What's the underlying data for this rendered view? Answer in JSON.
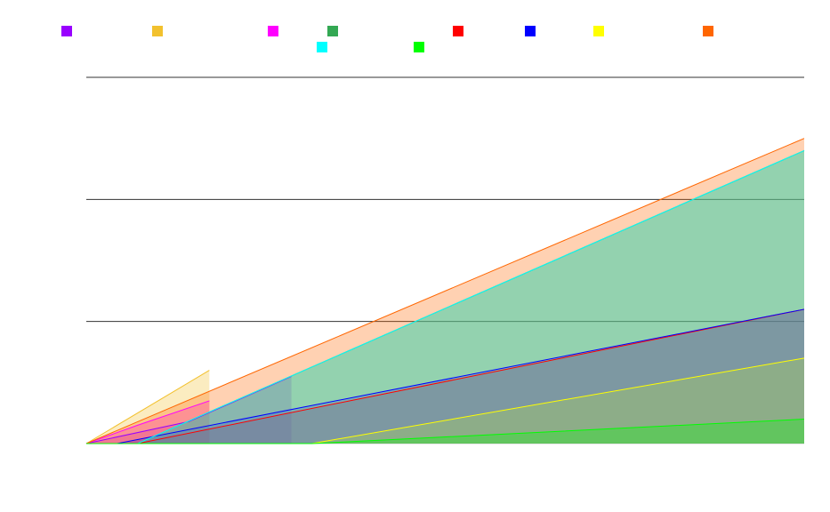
{
  "chart_data": {
    "type": "area",
    "title": "",
    "xlabel": "",
    "ylabel": "",
    "x": [
      0,
      1,
      2,
      3,
      4,
      5,
      6,
      7
    ],
    "ylim": [
      0,
      3
    ],
    "grid_y": [
      0,
      1,
      2,
      3
    ],
    "grid": true,
    "legend_position": "top",
    "series": [
      {
        "color": "#9900ff",
        "x": [
          0,
          1,
          2
        ],
        "values": [
          0,
          0.18,
          0.55
        ]
      },
      {
        "color": "#f2c12e",
        "x": [
          0,
          1,
          1.2
        ],
        "values": [
          0,
          0.5,
          0.6
        ]
      },
      {
        "color": "#ff00ff",
        "x": [
          0,
          0.5,
          1.2
        ],
        "values": [
          0,
          0.15,
          0.35
        ]
      },
      {
        "color": "#33a853",
        "x": [
          0,
          0.5,
          7
        ],
        "values": [
          0,
          0,
          2.4
        ]
      },
      {
        "color": "#ff0000",
        "x": [
          0,
          0.5,
          7
        ],
        "values": [
          0,
          0,
          1.1
        ]
      },
      {
        "color": "#0000ff",
        "x": [
          0,
          0.3,
          7
        ],
        "values": [
          0,
          0,
          1.1
        ]
      },
      {
        "color": "#ffff00",
        "x": [
          0,
          2.2,
          7
        ],
        "values": [
          0,
          0,
          0.7
        ]
      },
      {
        "color": "#ff6600",
        "x": [
          0,
          7
        ],
        "values": [
          0,
          2.5
        ]
      },
      {
        "color": "#00ffff",
        "x": [
          0,
          0.5,
          7
        ],
        "values": [
          0,
          0,
          2.4
        ]
      },
      {
        "color": "#00ff00",
        "x": [
          0,
          2.2,
          7
        ],
        "values": [
          0,
          0,
          0.2
        ]
      }
    ]
  }
}
